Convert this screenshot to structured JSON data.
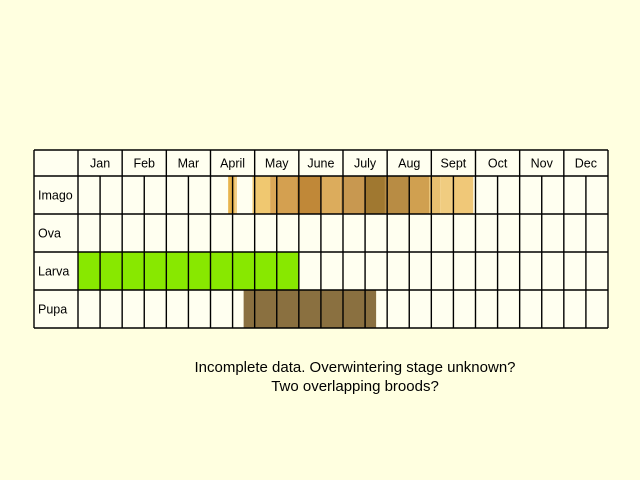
{
  "colors": {
    "background": "#ffffe0",
    "cell": "#fffff0",
    "grid": "#000000",
    "larva": "#88e800",
    "pupa": "#8a7040"
  },
  "months": [
    "Jan",
    "Feb",
    "Mar",
    "April",
    "May",
    "June",
    "July",
    "Aug",
    "Sept",
    "Oct",
    "Nov",
    "Dec"
  ],
  "stages": [
    {
      "label": "Imago",
      "bands": [
        {
          "start": 3.4,
          "end": 3.55,
          "color": "#e8b44c"
        },
        {
          "start": 3.55,
          "end": 3.6,
          "color": "#f4d088"
        },
        {
          "start": 3.95,
          "end": 4.35,
          "color": "#f0c870"
        },
        {
          "start": 4.35,
          "end": 4.5,
          "color": "#dca858"
        },
        {
          "start": 4.5,
          "end": 4.95,
          "color": "#d4a050"
        },
        {
          "start": 4.95,
          "end": 5.5,
          "color": "#c08838"
        },
        {
          "start": 5.5,
          "end": 5.95,
          "color": "#dcac5c"
        },
        {
          "start": 5.95,
          "end": 6.5,
          "color": "#c89850"
        },
        {
          "start": 6.5,
          "end": 6.95,
          "color": "#a07830"
        },
        {
          "start": 6.95,
          "end": 7.5,
          "color": "#b88c44"
        },
        {
          "start": 7.5,
          "end": 7.95,
          "color": "#d0a050"
        },
        {
          "start": 7.95,
          "end": 8.2,
          "color": "#e8c070"
        },
        {
          "start": 8.2,
          "end": 8.45,
          "color": "#f0cc80"
        },
        {
          "start": 8.45,
          "end": 8.95,
          "color": "#f0c878"
        }
      ]
    },
    {
      "label": "Ova",
      "bands": []
    },
    {
      "label": "Larva",
      "bands": [
        {
          "start": 0,
          "end": 5.0,
          "color": "#88e800"
        }
      ]
    },
    {
      "label": "Pupa",
      "bands": [
        {
          "start": 3.75,
          "end": 6.75,
          "color": "#8a7040"
        }
      ]
    }
  ],
  "caption": {
    "line1": "Incomplete data. Overwintering stage unknown?",
    "line2": "Two overlapping broods?"
  }
}
